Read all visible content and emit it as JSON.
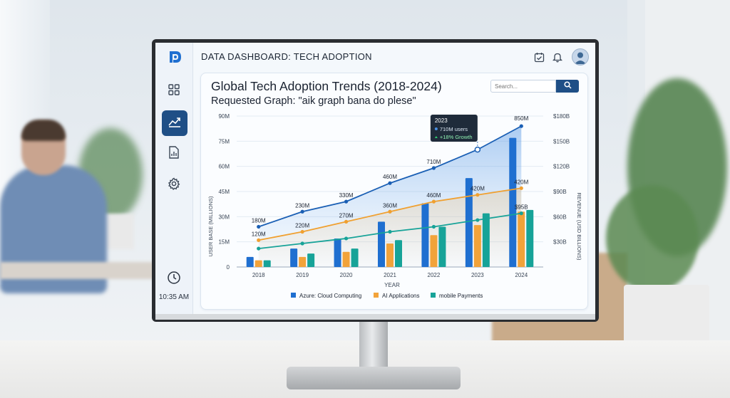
{
  "app": {
    "title": "DATA DASHBOARD: TECH ADOPTION",
    "time": "10:35 AM"
  },
  "icons": {
    "logo": "app-logo-icon",
    "sidebar": [
      "grid-icon",
      "trend-chart-icon",
      "report-icon",
      "gear-icon"
    ],
    "clock": "clock-icon",
    "top": [
      "calendar-check-icon",
      "bell-icon",
      "user-avatar-icon"
    ]
  },
  "colors": {
    "accent": "#1f4f86",
    "series": [
      "#1f6fd0",
      "#f2a33a",
      "#17a398"
    ]
  },
  "search": {
    "placeholder": "Search..."
  },
  "chart_data": {
    "type": "bar",
    "title": "Global Tech Adoption Trends (2018-2024)",
    "subtitle": "Requested Graph: \"aik graph bana do plese\"",
    "xlabel": "YEAR",
    "ylabel": "USER BASE (MILLIONS)",
    "y2label": "REVENUE (USD BILLIONS)",
    "categories": [
      "2018",
      "2019",
      "2020",
      "2021",
      "2022",
      "2023",
      "2024"
    ],
    "y_ticks": [
      "0",
      "15M",
      "30M",
      "45M",
      "60M",
      "75M",
      "90M"
    ],
    "y_range": [
      0,
      90
    ],
    "y2_ticks": [
      "$30B",
      "$60B",
      "$90B",
      "$120B",
      "$150B",
      "$180B"
    ],
    "legend_position": "bottom",
    "series": [
      {
        "name": "Azure: Cloud Computing",
        "values": [
          6,
          11,
          17,
          27,
          38,
          53,
          77
        ]
      },
      {
        "name": "AI Applications",
        "values": [
          4,
          6,
          9,
          14,
          19,
          25,
          33
        ]
      },
      {
        "name": "mobile Payments",
        "values": [
          4,
          8,
          11,
          16,
          24,
          32,
          34
        ]
      }
    ],
    "lines": [
      {
        "values": [
          24,
          33,
          39,
          50,
          59,
          70,
          84
        ],
        "labels": [
          "180M",
          "230M",
          "330M",
          "460M",
          "710M",
          "",
          ""
        ]
      },
      {
        "values": [
          16,
          21,
          27,
          33,
          39,
          43,
          47
        ],
        "labels": [
          "120M",
          "220M",
          "270M",
          "360M",
          "460M",
          "420M",
          "420M"
        ]
      },
      {
        "values": [
          11,
          14,
          17,
          21,
          24,
          28,
          32
        ],
        "labels": [
          "",
          "",
          "",
          "",
          "",
          "",
          "$95B"
        ]
      }
    ],
    "top_label": "850M",
    "tooltip": {
      "year": "2023",
      "users": "710M users",
      "growth": "+18% Growth"
    }
  }
}
